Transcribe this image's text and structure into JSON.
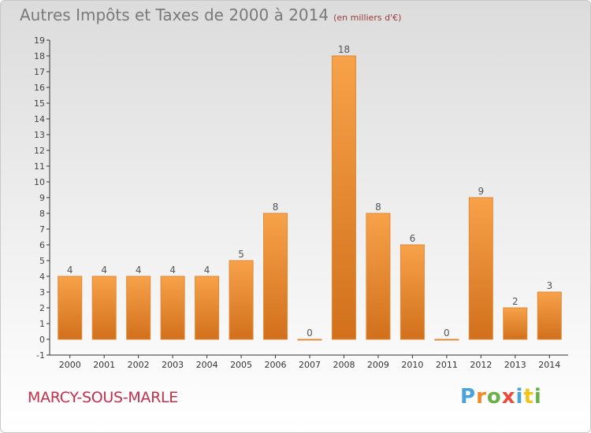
{
  "header": {
    "title": "Autres Impôts et Taxes de 2000 à 2014",
    "subtitle": "(en milliers d'€)"
  },
  "footer": {
    "place": "MARCY-SOUS-MARLE",
    "logo_letters": [
      "P",
      "r",
      "o",
      "x",
      "i",
      "t",
      "i"
    ],
    "logo_colors": [
      "#4aa3d8",
      "#f08a24",
      "#6ab04c",
      "#e74c3c",
      "#4aa3d8",
      "#f0c419",
      "#6ab04c"
    ]
  },
  "chart_data": {
    "type": "bar",
    "categories": [
      "2000",
      "2001",
      "2002",
      "2003",
      "2004",
      "2005",
      "2006",
      "2007",
      "2008",
      "2009",
      "2010",
      "2011",
      "2012",
      "2013",
      "2014"
    ],
    "values": [
      4,
      4,
      4,
      4,
      4,
      5,
      8,
      0,
      18,
      8,
      6,
      0,
      9,
      2,
      3
    ],
    "ylim": [
      -1,
      19
    ],
    "yticks": [
      "-1",
      "0",
      "1",
      "2",
      "3",
      "4",
      "5",
      "6",
      "7",
      "8",
      "9",
      "10",
      "11",
      "12",
      "13",
      "14",
      "15",
      "16",
      "17",
      "18",
      "19"
    ],
    "grid": false,
    "bar_color": "#f0912e",
    "label_color": "#555555"
  }
}
